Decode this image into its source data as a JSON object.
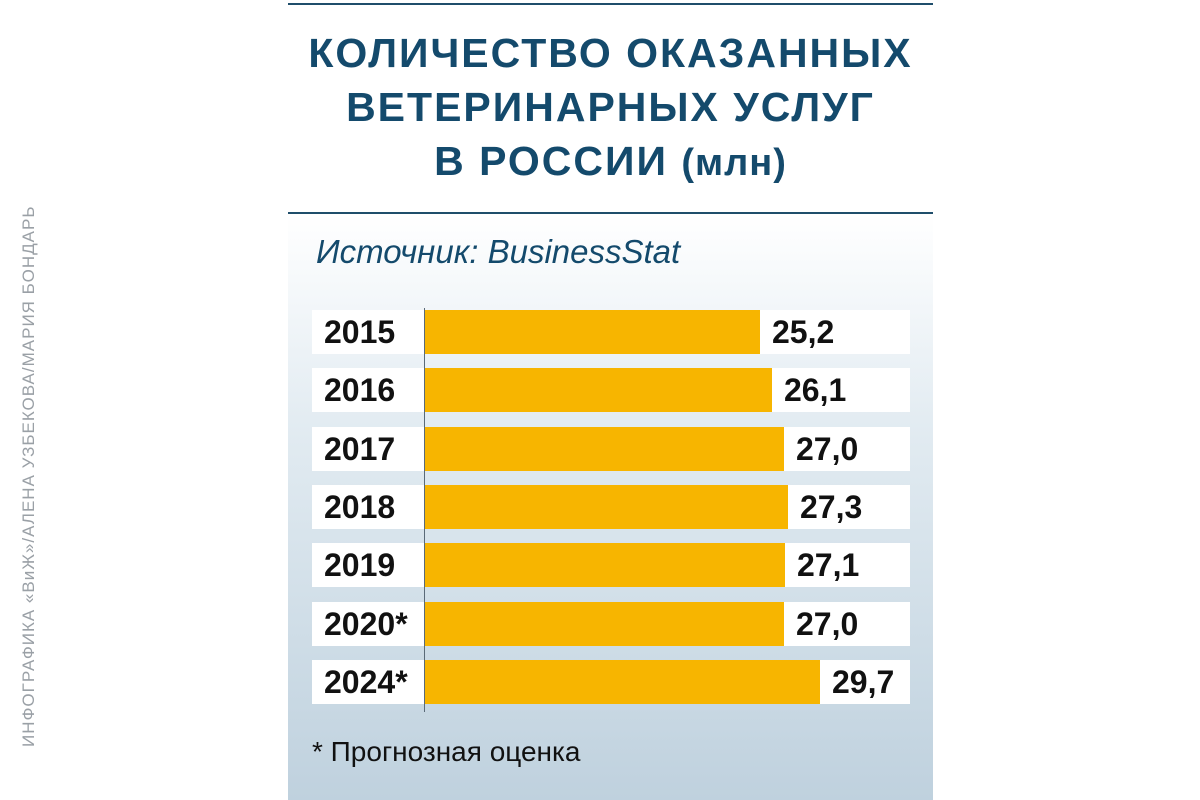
{
  "header": {
    "title_lines": [
      "КОЛИЧЕСТВО ОКАЗАННЫХ",
      "ВЕТЕРИНАРНЫХ УСЛУГ",
      "В РОССИИ"
    ],
    "title_unit": "(млн)",
    "source": "Источник: BusinessStat"
  },
  "footnote": "* Прогнозная оценка",
  "credit": "ИНФОГРАФИКА «ВиЖ»/АЛЕНА УЗБЕКОВА/МАРИЯ БОНДАРЬ",
  "colors": {
    "bar": "#f7b500",
    "title": "#144a6c",
    "row_background": "#ffffff"
  },
  "chart_data": {
    "type": "bar",
    "orientation": "horizontal",
    "title": "КОЛИЧЕСТВО ОКАЗАННЫХ ВЕТЕРИНАРНЫХ УСЛУГ В РОССИИ (млн)",
    "categories": [
      "2015",
      "2016",
      "2017",
      "2018",
      "2019",
      "2020*",
      "2024*"
    ],
    "values": [
      25.2,
      26.1,
      27.0,
      27.3,
      27.1,
      27.0,
      29.7
    ],
    "value_labels": [
      "25,2",
      "26,1",
      "27,0",
      "27,3",
      "27,1",
      "27,0",
      "29,7"
    ],
    "xlim": [
      0,
      34
    ],
    "grid": false,
    "legend": "none"
  }
}
